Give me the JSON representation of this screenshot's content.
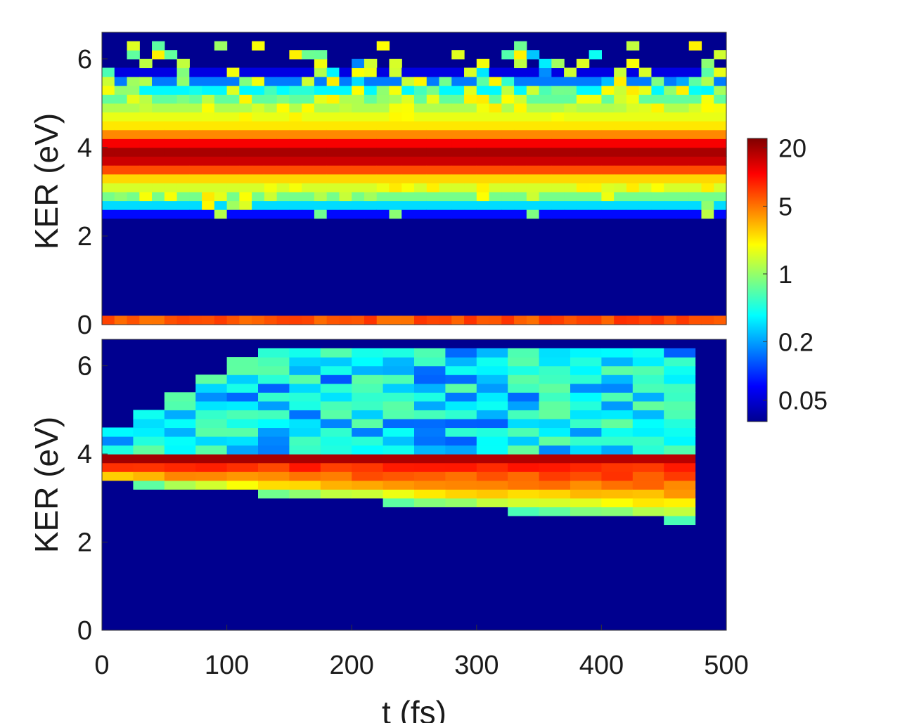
{
  "chart_data": [
    {
      "type": "heatmap",
      "panel": "top",
      "title": "",
      "xlabel": "",
      "ylabel": "KER (eV)",
      "xlim": [
        0,
        500
      ],
      "ylim": [
        0,
        6.6
      ],
      "y_ticks": [
        "0",
        "2",
        "4",
        "6"
      ],
      "x_ticks": [],
      "x_bin_fs": 10,
      "y_bin_eV": 0.2,
      "bands": [
        {
          "description": "main band",
          "center_eV": 3.85,
          "peak_value": 18
        },
        {
          "description": "low-energy band",
          "center_eV": 0.1,
          "peak_value": 6
        },
        {
          "description": "sparse upper noise",
          "range_eV": [
            4.4,
            6.4
          ],
          "typical_value": 0.8
        },
        {
          "description": "sparse lower noise",
          "range_eV": [
            2.4,
            3.3
          ],
          "typical_value": 0.8
        }
      ]
    },
    {
      "type": "heatmap",
      "panel": "bottom",
      "title": "",
      "xlabel": "t (fs)",
      "ylabel": "KER (eV)",
      "xlim": [
        0,
        500
      ],
      "ylim": [
        0,
        6.6
      ],
      "y_ticks": [
        "0",
        "2",
        "4",
        "6"
      ],
      "x_ticks": [
        "0",
        "100",
        "200",
        "300",
        "400",
        "500"
      ],
      "x_bin_fs": 25,
      "y_bin_eV": 0.2,
      "bands": [
        {
          "description": "main band edge",
          "center_eV": 3.8,
          "peak_value": 20
        },
        {
          "description": "band spreading to lower KER with time",
          "lower_edge_eV_at_0fs": 3.4,
          "lower_edge_eV_at_490fs": 2.4
        },
        {
          "description": "upper noise",
          "range_eV": [
            4.1,
            6.3
          ],
          "typical_value": 0.4
        }
      ]
    }
  ],
  "colorbar": {
    "scale": "log",
    "range": [
      0.03,
      25
    ],
    "tick_labels": [
      "20",
      "5",
      "1",
      "0.2",
      "0.05"
    ],
    "tick_values": [
      20,
      5,
      1,
      0.2,
      0.05
    ],
    "colormap": "jet"
  }
}
